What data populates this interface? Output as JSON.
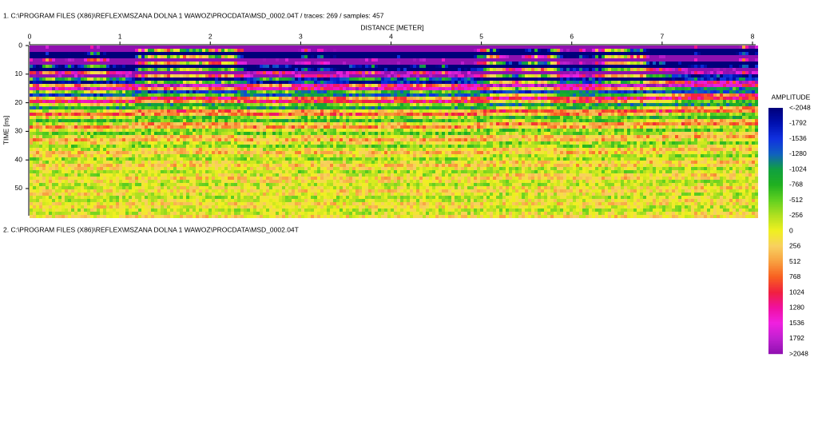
{
  "header": {
    "line1": "1. C:\\PROGRAM FILES (X86)\\REFLEX\\MSZANA DOLNA 1 WAWOZ\\PROCDATA\\MSD_0002.04T / traces: 269 / samples: 457",
    "line2": "2. C:\\PROGRAM FILES (X86)\\REFLEX\\MSZANA DOLNA 1 WAWOZ\\PROCDATA\\MSD_0002.04T"
  },
  "chart_data": {
    "type": "heatmap",
    "x_label": "DISTANCE [METER]",
    "y_label": "TIME [ns]",
    "xlim": [
      0,
      8
    ],
    "xticks": [
      0,
      1,
      2,
      3,
      4,
      5,
      6,
      7,
      8
    ],
    "ylim": [
      0,
      59.5
    ],
    "yticks": [
      0,
      10,
      20,
      30,
      40,
      50
    ],
    "colorbar": {
      "title": "AMPLITUDE",
      "ticks": [
        {
          "value": -2048,
          "label": "<-2048"
        },
        -1792,
        -1536,
        -1280,
        -1024,
        -768,
        -512,
        -256,
        0,
        256,
        512,
        768,
        1024,
        1280,
        1536,
        1792,
        {
          "value": 2048,
          "label": ">2048"
        }
      ],
      "colors": [
        "#00007a",
        "#0010b0",
        "#1030e0",
        "#1060c0",
        "#10a040",
        "#20b020",
        "#60d020",
        "#b0e020",
        "#f0f020",
        "#f8d060",
        "#f8a040",
        "#f86020",
        "#f02040",
        "#f010a0",
        "#f020e0",
        "#c020d0",
        "#9010b0"
      ]
    }
  }
}
